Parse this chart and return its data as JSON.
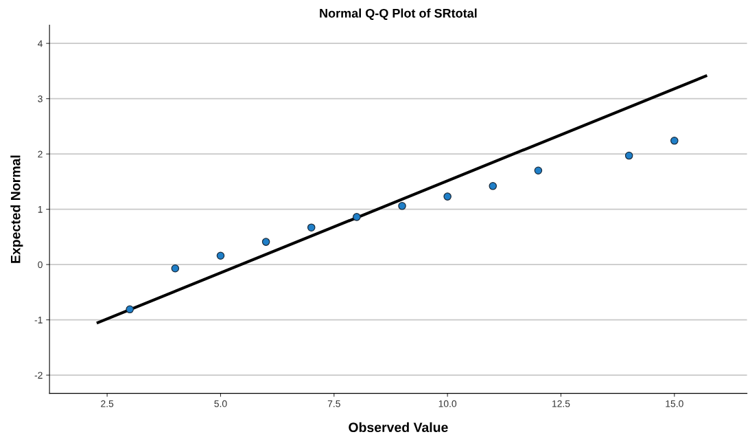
{
  "chart_data": {
    "type": "scatter",
    "title": "Normal Q-Q Plot of SRtotal",
    "xlabel": "Observed Value",
    "ylabel": "Expected Normal",
    "series": [
      {
        "marker": "circle",
        "color": "#1f7fc8",
        "x": [
          3,
          4,
          5,
          6,
          7,
          8,
          9,
          10,
          11,
          12,
          14,
          15
        ],
        "values": [
          -0.81,
          -0.07,
          0.16,
          0.41,
          0.67,
          0.86,
          1.06,
          1.23,
          1.42,
          1.7,
          1.97,
          2.24
        ]
      },
      {
        "type": "line",
        "color": "#000000",
        "x": [
          2.27,
          15.72
        ],
        "values": [
          -1.06,
          3.42
        ]
      }
    ],
    "xlim": [
      1.23,
      16.6
    ],
    "ylim": [
      -2.33,
      4.33
    ],
    "xticks": [
      {
        "value": 2.5,
        "label": "2.5"
      },
      {
        "value": 5,
        "label": "5.0"
      },
      {
        "value": 7.5,
        "label": "7.5"
      },
      {
        "value": 10,
        "label": "10.0"
      },
      {
        "value": 12.5,
        "label": "12.5"
      },
      {
        "value": 15,
        "label": "15.0"
      }
    ],
    "yticks": [
      -2,
      -1,
      0,
      1,
      2,
      3,
      4
    ],
    "grid": "y"
  }
}
